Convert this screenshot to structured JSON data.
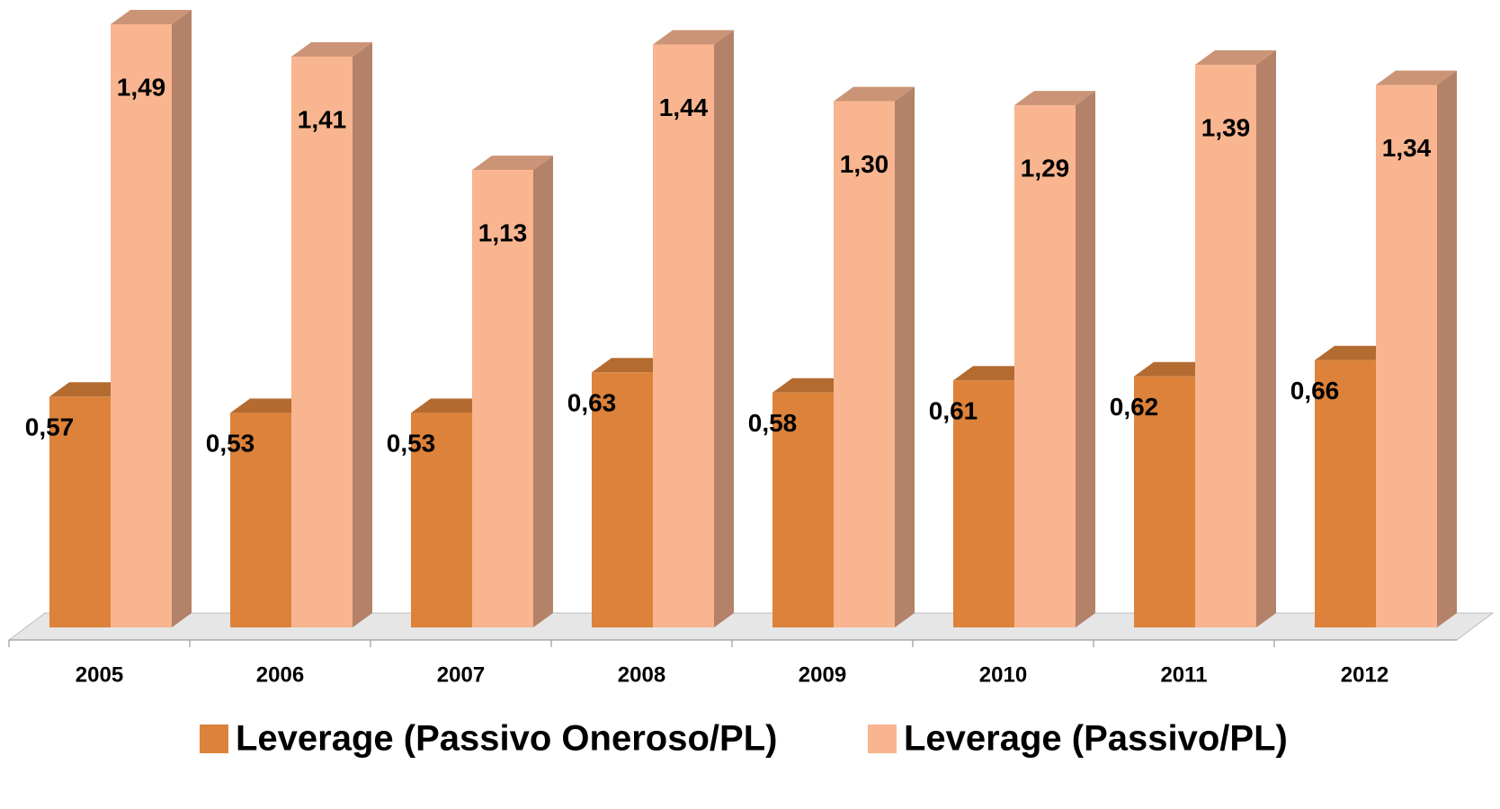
{
  "chart_data": {
    "type": "bar3d",
    "categories": [
      "2005",
      "2006",
      "2007",
      "2008",
      "2009",
      "2010",
      "2011",
      "2012"
    ],
    "series": [
      {
        "name": "Leverage (Passivo Oneroso/PL)",
        "color": "#dc823a",
        "values": [
          0.57,
          0.53,
          0.53,
          0.63,
          0.58,
          0.61,
          0.62,
          0.66
        ],
        "value_labels": [
          "0,57",
          "0,53",
          "0,53",
          "0,63",
          "0,58",
          "0,61",
          "0,62",
          "0,66"
        ]
      },
      {
        "name": "Leverage (Passivo/PL)",
        "color": "#f8b590",
        "values": [
          1.49,
          1.41,
          1.13,
          1.44,
          1.3,
          1.29,
          1.39,
          1.34
        ],
        "value_labels": [
          "1,49",
          "1,41",
          "1,13",
          "1,44",
          "1,30",
          "1,29",
          "1,39",
          "1,34"
        ]
      }
    ],
    "legend": "bottom"
  }
}
